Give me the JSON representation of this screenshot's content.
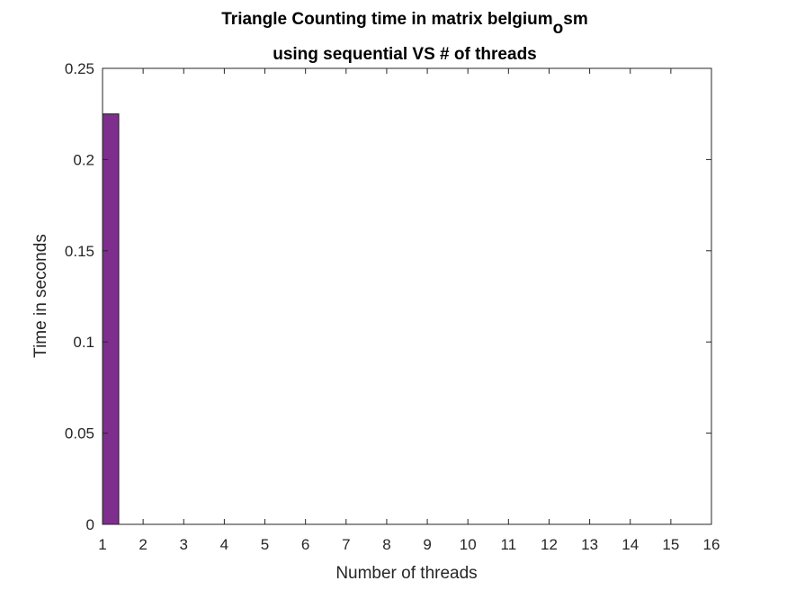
{
  "chart_data": {
    "type": "bar",
    "title_line1_main": "Triangle Counting time in matrix belgium",
    "title_line1_sub": "o",
    "title_line1_tail": "sm",
    "title_line2": "using sequential VS # of threads",
    "xlabel": "Number of threads",
    "ylabel": "Time in seconds",
    "x_ticks": [
      "1",
      "2",
      "3",
      "4",
      "5",
      "6",
      "7",
      "8",
      "9",
      "10",
      "11",
      "12",
      "13",
      "14",
      "15",
      "16"
    ],
    "y_ticks": [
      "0",
      "0.05",
      "0.1",
      "0.15",
      "0.2",
      "0.25"
    ],
    "xlim": [
      1,
      16
    ],
    "ylim": [
      0,
      0.25
    ],
    "grid": false,
    "series": [
      {
        "color": "#7E2F8E",
        "x": [
          1
        ],
        "values": [
          0.225
        ]
      }
    ]
  }
}
